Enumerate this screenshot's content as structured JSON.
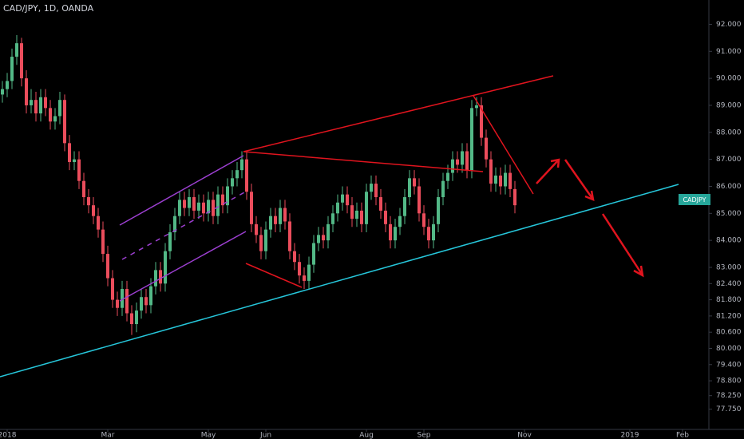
{
  "chart_data": {
    "type": "candlestick",
    "title": "CAD/JPY, 1D, OANDA",
    "symbol_label": "CADJPY",
    "up_color": "#53b987",
    "down_color": "#eb4d5c",
    "open": [
      89.4,
      89.6,
      89.9,
      90.8,
      91.3,
      90.0,
      89.0,
      89.2,
      88.7,
      89.3,
      88.9,
      88.4,
      88.6,
      89.2,
      87.6,
      86.9,
      87.0,
      86.2,
      85.6,
      85.3,
      84.9,
      84.4,
      83.5,
      82.6,
      81.8,
      81.5,
      82.2,
      81.3,
      80.9,
      81.4,
      81.9,
      81.6,
      82.3,
      82.9,
      82.4,
      83.6,
      84.3,
      84.9,
      85.5,
      85.2,
      85.6,
      85.1,
      85.4,
      85.0,
      85.5,
      84.9,
      85.7,
      85.3,
      86.0,
      86.3,
      86.6,
      87.0,
      85.8,
      84.6,
      84.2,
      83.6,
      84.4,
      84.9,
      84.6,
      85.2,
      84.7,
      83.6,
      83.2,
      82.7,
      82.5,
      83.1,
      83.9,
      84.2,
      84.0,
      84.6,
      85.0,
      85.4,
      85.7,
      85.3,
      84.8,
      85.1,
      84.6,
      85.8,
      86.1,
      85.6,
      85.1,
      84.6,
      84.0,
      84.5,
      84.9,
      85.6,
      86.3,
      86.0,
      85.0,
      84.5,
      84.0,
      84.6,
      85.6,
      86.2,
      86.5,
      87.0,
      86.8,
      87.3,
      86.6,
      88.9,
      89.0,
      87.8,
      87.0,
      86.1,
      86.4,
      86.0,
      86.5,
      85.9
    ],
    "high": [
      89.9,
      90.2,
      91.1,
      91.6,
      91.5,
      90.3,
      89.6,
      89.5,
      89.6,
      89.6,
      89.2,
      88.9,
      89.5,
      89.4,
      87.9,
      87.3,
      87.3,
      86.5,
      85.9,
      85.6,
      85.2,
      84.7,
      83.8,
      82.9,
      82.1,
      82.5,
      82.5,
      81.6,
      81.7,
      82.2,
      82.2,
      82.6,
      83.2,
      83.2,
      83.9,
      84.6,
      85.2,
      85.8,
      85.8,
      85.9,
      85.9,
      85.7,
      85.7,
      85.8,
      85.8,
      86.0,
      86.0,
      86.3,
      86.6,
      86.9,
      87.3,
      87.3,
      86.1,
      84.9,
      84.5,
      84.7,
      85.2,
      85.2,
      85.5,
      85.5,
      85.0,
      83.9,
      83.5,
      83.0,
      83.4,
      84.2,
      84.5,
      84.5,
      84.9,
      85.3,
      85.7,
      86.0,
      86.0,
      85.6,
      85.4,
      85.4,
      86.1,
      86.4,
      86.4,
      85.9,
      85.4,
      84.9,
      84.8,
      85.2,
      85.9,
      86.6,
      86.6,
      86.3,
      85.3,
      84.8,
      84.9,
      85.9,
      86.5,
      86.8,
      87.3,
      87.3,
      87.6,
      87.6,
      89.2,
      89.3,
      89.3,
      88.1,
      87.3,
      86.7,
      86.7,
      86.8,
      86.8,
      86.2
    ],
    "low": [
      89.1,
      89.3,
      89.6,
      90.5,
      89.7,
      88.7,
      88.7,
      88.4,
      88.4,
      88.6,
      88.1,
      88.1,
      88.3,
      87.3,
      86.6,
      86.6,
      85.9,
      85.3,
      85.0,
      84.6,
      84.1,
      83.2,
      82.3,
      81.5,
      81.2,
      81.2,
      81.0,
      80.5,
      80.6,
      81.1,
      81.3,
      81.3,
      82.0,
      82.1,
      82.1,
      83.3,
      84.0,
      84.6,
      84.9,
      84.9,
      84.8,
      84.8,
      84.7,
      84.7,
      84.6,
      84.6,
      85.0,
      85.0,
      85.7,
      86.0,
      86.3,
      85.5,
      84.3,
      83.9,
      83.3,
      83.3,
      84.1,
      84.3,
      84.3,
      84.4,
      83.3,
      82.9,
      82.4,
      82.2,
      82.2,
      82.8,
      83.6,
      83.7,
      83.7,
      84.3,
      84.7,
      85.1,
      85.0,
      84.5,
      84.5,
      84.3,
      84.3,
      85.5,
      85.3,
      84.8,
      84.3,
      83.7,
      83.7,
      84.2,
      84.6,
      85.3,
      85.7,
      84.7,
      84.2,
      83.7,
      83.7,
      84.3,
      85.3,
      85.9,
      86.2,
      86.5,
      86.5,
      86.3,
      86.3,
      88.6,
      87.5,
      86.7,
      85.8,
      85.8,
      85.7,
      85.7,
      85.6,
      85.0
    ],
    "close": [
      89.6,
      89.9,
      90.8,
      91.3,
      90.0,
      89.0,
      89.2,
      88.7,
      89.3,
      88.9,
      88.4,
      88.6,
      89.2,
      87.6,
      86.9,
      87.0,
      86.2,
      85.6,
      85.3,
      84.9,
      84.4,
      83.5,
      82.6,
      81.8,
      81.5,
      82.2,
      81.3,
      80.9,
      81.4,
      81.9,
      81.6,
      82.3,
      82.9,
      82.4,
      83.6,
      84.3,
      84.9,
      85.5,
      85.2,
      85.6,
      85.1,
      85.4,
      85.0,
      85.5,
      84.9,
      85.7,
      85.3,
      86.0,
      86.3,
      86.6,
      87.0,
      85.8,
      84.6,
      84.2,
      83.6,
      84.4,
      84.9,
      84.6,
      85.2,
      84.7,
      83.6,
      83.2,
      82.7,
      82.5,
      83.1,
      83.9,
      84.2,
      84.0,
      84.6,
      85.0,
      85.4,
      85.7,
      85.3,
      84.8,
      85.1,
      84.6,
      85.8,
      86.1,
      85.6,
      85.1,
      84.6,
      84.0,
      84.5,
      84.9,
      85.6,
      86.3,
      86.0,
      85.0,
      84.5,
      84.0,
      84.6,
      85.6,
      86.2,
      86.5,
      87.0,
      86.8,
      87.3,
      86.6,
      88.9,
      89.0,
      87.8,
      87.0,
      86.1,
      86.4,
      86.0,
      86.5,
      85.9,
      85.3
    ],
    "xlim": [
      -0.5,
      147.5
    ],
    "xticks": [
      {
        "value": 1,
        "label": "2018"
      },
      {
        "value": 22,
        "label": "Mar"
      },
      {
        "value": 43,
        "label": "May"
      },
      {
        "value": 55,
        "label": "Jun"
      },
      {
        "value": 76,
        "label": "Aug"
      },
      {
        "value": 88,
        "label": "Sep"
      },
      {
        "value": 109,
        "label": "Nov"
      },
      {
        "value": 131,
        "label": "2019"
      },
      {
        "value": 142,
        "label": "Feb"
      }
    ],
    "ylim": [
      77.0,
      92.9
    ],
    "yticks": [
      {
        "value": 92,
        "label": "92.000"
      },
      {
        "value": 91,
        "label": "91.000"
      },
      {
        "value": 90,
        "label": "90.000"
      },
      {
        "value": 89,
        "label": "89.000"
      },
      {
        "value": 88,
        "label": "88.000"
      },
      {
        "value": 87,
        "label": "87.000"
      },
      {
        "value": 86,
        "label": "86.000"
      },
      {
        "value": 85,
        "label": "85.000"
      },
      {
        "value": 84,
        "label": "84.000"
      },
      {
        "value": 83,
        "label": "83.000"
      },
      {
        "value": 82.4,
        "label": "82.400"
      },
      {
        "value": 81.8,
        "label": "81.800"
      },
      {
        "value": 81.2,
        "label": "81.200"
      },
      {
        "value": 80.6,
        "label": "80.600"
      },
      {
        "value": 80,
        "label": "80.000"
      },
      {
        "value": 79.4,
        "label": "79.400"
      },
      {
        "value": 78.8,
        "label": "78.800"
      },
      {
        "value": 78.25,
        "label": "78.250"
      },
      {
        "value": 77.75,
        "label": "77.750"
      }
    ]
  }
}
